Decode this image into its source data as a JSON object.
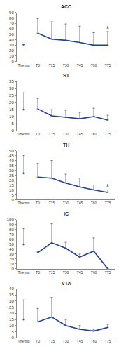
{
  "chart_data": [
    {
      "type": "line",
      "title": "ACC",
      "categories": [
        "Thermo",
        "T0",
        "T15",
        "T30",
        "T45",
        "T60",
        "T75"
      ],
      "series": [
        {
          "type": "scatter",
          "marker": "circle",
          "color": "#2e5cb8",
          "values": [
            31,
            null,
            null,
            null,
            null,
            null,
            null
          ],
          "error": [
            0,
            null,
            null,
            null,
            null,
            null,
            null
          ]
        },
        {
          "type": "line",
          "line_style": "solid",
          "color": "#1f3f99",
          "values": [
            null,
            52,
            41,
            39,
            35,
            30,
            30
          ],
          "error": [
            null,
            27,
            32,
            30,
            30,
            23,
            25
          ]
        }
      ],
      "ylim": [
        0,
        90
      ],
      "yticks": [
        0,
        10,
        20,
        30,
        40,
        50,
        60,
        70,
        80,
        90
      ],
      "grid": false,
      "annotations": [
        {
          "x": "T75",
          "y": 60,
          "text": "*"
        }
      ]
    },
    {
      "type": "line",
      "title": "S1",
      "categories": [
        "Thermo",
        "T0",
        "T15",
        "T30",
        "T45",
        "T60",
        "T75"
      ],
      "series": [
        {
          "type": "scatter",
          "marker": "circle",
          "color": "#2e5cb8",
          "values": [
            15,
            null,
            null,
            null,
            null,
            null,
            null
          ],
          "error": [
            12,
            null,
            null,
            null,
            null,
            null,
            null
          ]
        },
        {
          "type": "line",
          "line_style": "solid",
          "color": "#1f3f99",
          "values": [
            null,
            15.5,
            10.5,
            9.5,
            8.5,
            10,
            7.5
          ],
          "error": [
            null,
            7.5,
            4.5,
            5,
            4.5,
            6,
            3.5
          ]
        }
      ],
      "ylim": [
        0,
        35
      ],
      "yticks": [
        0,
        5,
        10,
        15,
        20,
        25,
        30,
        35
      ],
      "grid": false
    },
    {
      "type": "line",
      "title": "TH",
      "categories": [
        "Thermo",
        "T0",
        "T15",
        "T30",
        "T45",
        "T60",
        "T75"
      ],
      "series": [
        {
          "type": "scatter",
          "marker": "circle",
          "color": "#2e5cb8",
          "values": [
            27,
            null,
            null,
            null,
            null,
            null,
            null
          ],
          "error": [
            18,
            null,
            null,
            null,
            null,
            null,
            null
          ]
        },
        {
          "type": "line",
          "line_style": "solid",
          "color": "#1f3f99",
          "values": [
            null,
            23,
            22,
            17,
            13,
            10,
            7.5
          ],
          "error": [
            null,
            14,
            18,
            9,
            9,
            5,
            2.5
          ]
        }
      ],
      "ylim": [
        0,
        50
      ],
      "yticks": [
        0,
        5,
        10,
        15,
        20,
        25,
        30,
        35,
        40,
        45,
        50
      ],
      "grid": false,
      "annotations": [
        {
          "x": "T75",
          "y": 13,
          "text": "*"
        }
      ]
    },
    {
      "type": "line",
      "title": "IC",
      "categories": [
        "Thermo",
        "T0",
        "T15",
        "T30",
        "T45",
        "T60",
        "T75"
      ],
      "series": [
        {
          "type": "scatter",
          "marker": "circle",
          "color": "#2e5cb8",
          "values": [
            50,
            null,
            null,
            null,
            null,
            null,
            null
          ],
          "error": [
            32,
            null,
            null,
            null,
            null,
            null,
            null
          ]
        },
        {
          "type": "line",
          "line_style": "solid",
          "color": "#1f3f99",
          "values": [
            null,
            33,
            53,
            42,
            24,
            36,
            0
          ],
          "error": [
            null,
            2,
            39,
            12,
            6,
            27,
            0
          ]
        }
      ],
      "ylim": [
        0,
        100
      ],
      "yticks": [
        0,
        10,
        20,
        30,
        40,
        50,
        60,
        70,
        80,
        90,
        100
      ],
      "grid": false
    },
    {
      "type": "line",
      "title": "VTA",
      "categories": [
        "Thermo",
        "T0",
        "T15",
        "T30",
        "T45",
        "T60",
        "T75"
      ],
      "series": [
        {
          "type": "scatter",
          "marker": "circle",
          "color": "#2e5cb8",
          "values": [
            15,
            null,
            null,
            null,
            null,
            null,
            null
          ],
          "error": [
            16,
            null,
            null,
            null,
            null,
            null,
            null
          ]
        },
        {
          "type": "line",
          "line_style": "solid",
          "color": "#1f3f99",
          "values": [
            null,
            13,
            17,
            10,
            7,
            5.5,
            8.5
          ],
          "error": [
            null,
            11,
            16,
            5,
            3,
            1.5,
            2.5
          ]
        }
      ],
      "ylim": [
        0,
        40
      ],
      "yticks": [
        0,
        5,
        10,
        15,
        20,
        25,
        30,
        35,
        40
      ],
      "grid": false
    }
  ]
}
